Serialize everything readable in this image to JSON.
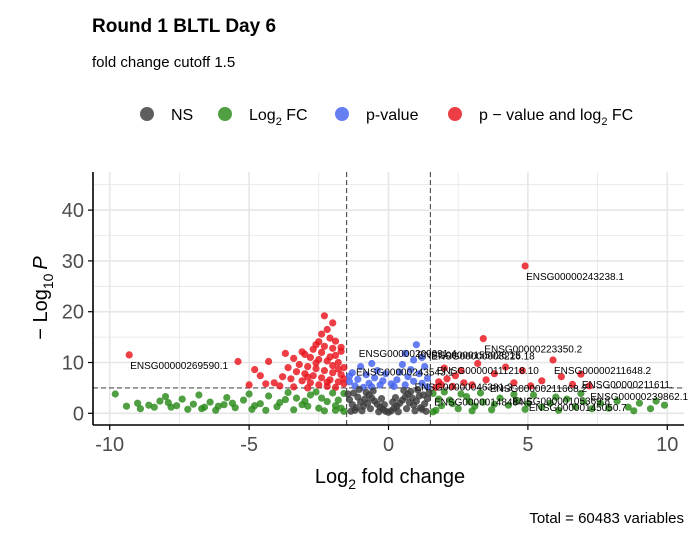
{
  "chart_data": {
    "type": "scatter",
    "title": "Round 1 BLTL Day 6",
    "subtitle": "fold change cutoff 1.5",
    "xlabel_main": "Log",
    "xlabel_sub": "2",
    "xlabel_rest": " fold change",
    "ylabel_prefix": "− Log",
    "ylabel_sub": "10",
    "ylabel_var": "P",
    "caption": "Total = 60483 variables",
    "xlim": [
      -10.6,
      10.6
    ],
    "ylim": [
      -2.3,
      47.5
    ],
    "xticks": [
      -10,
      -5,
      0,
      5,
      10
    ],
    "xtick_labels": [
      "-10",
      "-5",
      "0",
      "5",
      "10"
    ],
    "yticks": [
      0,
      10,
      20,
      30,
      40
    ],
    "ytick_labels": [
      "0",
      "10",
      "20",
      "30",
      "40"
    ],
    "fc_cutoffs": [
      -1.5,
      1.5
    ],
    "p_cutoff_y": 5,
    "grid": true,
    "legend_position": "top",
    "legend": [
      {
        "key": "ns",
        "label": "NS",
        "color": "#3a3a3a"
      },
      {
        "key": "fc",
        "label_main": "Log",
        "label_sub": "2",
        "label_rest": " FC",
        "color": "#2a8a1a"
      },
      {
        "key": "p",
        "label": "p-value",
        "color": "#4361ee"
      },
      {
        "key": "both",
        "label_main": "p − value and log",
        "label_sub": "2",
        "label_rest": " FC",
        "color": "#e8141b"
      }
    ],
    "colors": {
      "ns": "#3a3a3a",
      "fc": "#2a8a1a",
      "p": "#4361ee",
      "both": "#e8141b"
    },
    "labeled_points": [
      {
        "x": 4.9,
        "y": 29.0,
        "label": "ENSG00000243238.1"
      },
      {
        "x": -9.3,
        "y": 11.5,
        "label": "ENSG00000269590.1"
      },
      {
        "x": 3.4,
        "y": 14.7,
        "label": "ENSG00000223350.2"
      },
      {
        "x": 5.9,
        "y": 10.5,
        "label": "ENSG00000211648.2"
      },
      {
        "x": 6.9,
        "y": 7.7,
        "label": "ENSG00000211611."
      },
      {
        "x": 7.2,
        "y": 5.4,
        "label": "ENSG00000239862.1"
      },
      {
        "x": 1.0,
        "y": 13.5,
        "label": "ENSG00000155026.15"
      },
      {
        "x": -1.1,
        "y": 13.8,
        "label": "ENSG00000269091.4"
      },
      {
        "x": 1.5,
        "y": 13.3,
        "label": "ENSG00000008226.18"
      },
      {
        "x": 1.7,
        "y": 10.5,
        "label": "ENSG00000111218.10"
      },
      {
        "x": -1.2,
        "y": 10.2,
        "label": "ENSG00000243543.1"
      },
      {
        "x": 0.9,
        "y": 7.2,
        "label": "ENSG00000046381.2"
      },
      {
        "x": 3.6,
        "y": 7.0,
        "label": "ENSG00000211668.2"
      },
      {
        "x": 4.4,
        "y": 4.5,
        "label": "ENSG00000105369.8"
      },
      {
        "x": 1.6,
        "y": 4.3,
        "label": "ENSG00000148484.5"
      },
      {
        "x": 5.0,
        "y": 3.2,
        "label": "ENSG00000145050.7"
      }
    ],
    "series": [
      {
        "key": "both",
        "points": [
          [
            4.9,
            29.0
          ],
          [
            -9.3,
            11.5
          ],
          [
            3.4,
            14.7
          ],
          [
            5.9,
            10.5
          ],
          [
            6.9,
            7.7
          ],
          [
            7.2,
            5.4
          ],
          [
            -2.3,
            19.2
          ],
          [
            -2.0,
            17.8
          ],
          [
            -2.2,
            16.5
          ],
          [
            -2.4,
            15.6
          ],
          [
            -2.1,
            14.8
          ],
          [
            -1.9,
            14.2
          ],
          [
            -2.6,
            13.5
          ],
          [
            -2.0,
            12.8
          ],
          [
            -1.7,
            12.2
          ],
          [
            -3.0,
            11.6
          ],
          [
            -2.8,
            11.0
          ],
          [
            -2.5,
            10.6
          ],
          [
            -2.2,
            10.3
          ],
          [
            -1.8,
            10.0
          ],
          [
            -3.4,
            10.8
          ],
          [
            -3.2,
            9.6
          ],
          [
            -2.9,
            9.2
          ],
          [
            -2.6,
            8.8
          ],
          [
            -2.3,
            8.4
          ],
          [
            -2.0,
            8.0
          ],
          [
            -1.7,
            7.6
          ],
          [
            -3.6,
            9.0
          ],
          [
            -3.3,
            8.2
          ],
          [
            -3.0,
            7.8
          ],
          [
            -2.7,
            7.4
          ],
          [
            -2.4,
            7.0
          ],
          [
            -2.1,
            6.6
          ],
          [
            -1.8,
            6.2
          ],
          [
            -1.6,
            5.8
          ],
          [
            -3.8,
            7.2
          ],
          [
            -3.5,
            6.8
          ],
          [
            -3.1,
            6.4
          ],
          [
            -2.8,
            6.0
          ],
          [
            -2.5,
            5.6
          ],
          [
            -2.2,
            5.3
          ],
          [
            -1.9,
            5.1
          ],
          [
            -4.3,
            10.2
          ],
          [
            -4.6,
            7.4
          ],
          [
            -4.1,
            6.0
          ],
          [
            -5.0,
            5.6
          ],
          [
            -5.4,
            10.2
          ],
          [
            -4.8,
            8.6
          ],
          [
            -3.9,
            5.4
          ],
          [
            -3.4,
            5.2
          ],
          [
            -2.9,
            5.0
          ],
          [
            -2.4,
            12.0
          ],
          [
            -1.9,
            11.4
          ],
          [
            -2.7,
            12.6
          ],
          [
            -2.3,
            13.2
          ],
          [
            -1.6,
            9.0
          ],
          [
            -1.6,
            6.8
          ],
          [
            -2.0,
            9.4
          ],
          [
            -3.7,
            11.8
          ],
          [
            -2.6,
            9.9
          ],
          [
            2.4,
            7.4
          ],
          [
            2.1,
            6.8
          ],
          [
            1.8,
            6.2
          ],
          [
            2.7,
            6.0
          ],
          [
            3.0,
            5.6
          ],
          [
            2.3,
            5.3
          ],
          [
            1.7,
            5.1
          ],
          [
            3.5,
            6.6
          ],
          [
            4.2,
            9.1
          ],
          [
            3.8,
            7.8
          ],
          [
            2.6,
            8.4
          ],
          [
            4.8,
            8.4
          ],
          [
            5.5,
            6.4
          ],
          [
            6.2,
            7.2
          ],
          [
            4.5,
            6.0
          ],
          [
            3.2,
            9.8
          ],
          [
            2.0,
            8.9
          ],
          [
            1.9,
            5.6
          ],
          [
            5.1,
            5.4
          ],
          [
            6.6,
            5.7
          ],
          [
            -2.5,
            14.1
          ],
          [
            -2.1,
            11.1
          ],
          [
            -1.8,
            8.7
          ],
          [
            -3.1,
            12.1
          ],
          [
            -2.9,
            7.1
          ],
          [
            -2.2,
            6.1
          ],
          [
            -4.4,
            5.8
          ],
          [
            -1.7,
            13.0
          ]
        ]
      },
      {
        "key": "p",
        "points": [
          [
            1.0,
            13.5
          ],
          [
            0.6,
            11.8
          ],
          [
            1.2,
            11.0
          ],
          [
            0.9,
            10.5
          ],
          [
            0.5,
            9.6
          ],
          [
            1.3,
            9.2
          ],
          [
            0.8,
            8.6
          ],
          [
            0.4,
            8.1
          ],
          [
            1.1,
            7.8
          ],
          [
            0.7,
            7.2
          ],
          [
            1.4,
            6.9
          ],
          [
            0.3,
            6.6
          ],
          [
            0.9,
            6.3
          ],
          [
            1.2,
            5.9
          ],
          [
            0.6,
            5.6
          ],
          [
            0.2,
            5.3
          ],
          [
            1.4,
            5.2
          ],
          [
            -0.6,
            9.8
          ],
          [
            -1.0,
            9.2
          ],
          [
            -0.4,
            8.4
          ],
          [
            -1.3,
            8.0
          ],
          [
            -0.8,
            7.6
          ],
          [
            -0.5,
            7.0
          ],
          [
            -1.1,
            6.7
          ],
          [
            -1.4,
            6.2
          ],
          [
            -0.7,
            5.9
          ],
          [
            -0.3,
            5.6
          ],
          [
            -1.2,
            5.4
          ],
          [
            -0.9,
            5.1
          ],
          [
            -0.2,
            6.4
          ],
          [
            -1.4,
            7.3
          ],
          [
            -0.6,
            5.2
          ],
          [
            0.1,
            5.8
          ],
          [
            -0.1,
            7.8
          ]
        ]
      },
      {
        "key": "fc",
        "points": [
          [
            -9.8,
            3.8
          ],
          [
            -9.0,
            2.0
          ],
          [
            -8.6,
            1.6
          ],
          [
            -8.2,
            2.4
          ],
          [
            -7.8,
            1.2
          ],
          [
            -7.4,
            2.8
          ],
          [
            -7.0,
            1.8
          ],
          [
            -6.7,
            0.9
          ],
          [
            -6.4,
            2.2
          ],
          [
            -6.1,
            1.4
          ],
          [
            -5.8,
            3.1
          ],
          [
            -5.5,
            1.1
          ],
          [
            -5.2,
            2.6
          ],
          [
            -4.9,
            0.8
          ],
          [
            -4.6,
            1.9
          ],
          [
            -4.3,
            3.4
          ],
          [
            -4.0,
            1.3
          ],
          [
            -3.7,
            2.7
          ],
          [
            -3.4,
            0.7
          ],
          [
            -3.1,
            1.7
          ],
          [
            -2.8,
            3.6
          ],
          [
            -2.5,
            1.0
          ],
          [
            -2.2,
            2.3
          ],
          [
            -1.9,
            1.5
          ],
          [
            -1.6,
            3.9
          ],
          [
            -8.9,
            0.9
          ],
          [
            -8.0,
            3.3
          ],
          [
            -7.2,
            0.8
          ],
          [
            -6.8,
            3.6
          ],
          [
            -6.2,
            0.6
          ],
          [
            -5.6,
            2.0
          ],
          [
            -5.0,
            3.8
          ],
          [
            -4.4,
            0.6
          ],
          [
            -3.9,
            2.1
          ],
          [
            -3.3,
            3.0
          ],
          [
            -2.9,
            1.4
          ],
          [
            -2.3,
            0.5
          ],
          [
            -1.8,
            2.6
          ],
          [
            -4.8,
            1.5
          ],
          [
            -3.6,
            4.1
          ],
          [
            -2.6,
            4.2
          ],
          [
            -2.0,
            4.0
          ],
          [
            -1.7,
            1.0
          ],
          [
            -5.9,
            1.7
          ],
          [
            -6.6,
            1.2
          ],
          [
            -7.6,
            1.5
          ],
          [
            -8.4,
            1.2
          ],
          [
            -3.0,
            2.4
          ],
          [
            -2.4,
            3.0
          ],
          [
            -1.9,
            0.6
          ],
          [
            1.6,
            3.9
          ],
          [
            1.9,
            1.5
          ],
          [
            2.2,
            2.6
          ],
          [
            2.5,
            0.9
          ],
          [
            2.8,
            3.3
          ],
          [
            3.1,
            1.4
          ],
          [
            3.4,
            2.2
          ],
          [
            3.7,
            0.7
          ],
          [
            4.0,
            3.0
          ],
          [
            4.3,
            1.6
          ],
          [
            4.6,
            2.5
          ],
          [
            4.9,
            0.8
          ],
          [
            5.2,
            3.6
          ],
          [
            5.5,
            1.2
          ],
          [
            5.8,
            2.0
          ],
          [
            6.1,
            0.6
          ],
          [
            6.4,
            2.8
          ],
          [
            6.7,
            1.3
          ],
          [
            7.0,
            2.3
          ],
          [
            7.3,
            0.9
          ],
          [
            7.6,
            2.0
          ],
          [
            7.9,
            1.0
          ],
          [
            8.2,
            2.4
          ],
          [
            8.6,
            1.2
          ],
          [
            9.0,
            2.0
          ],
          [
            9.4,
            0.9
          ],
          [
            9.9,
            1.6
          ],
          [
            2.0,
            4.2
          ],
          [
            2.6,
            3.8
          ],
          [
            3.3,
            4.0
          ],
          [
            4.5,
            3.7
          ],
          [
            1.7,
            0.6
          ],
          [
            2.3,
            1.9
          ],
          [
            3.0,
            0.5
          ],
          [
            3.8,
            1.8
          ],
          [
            5.0,
            1.9
          ],
          [
            6.0,
            3.2
          ],
          [
            6.9,
            3.9
          ],
          [
            1.8,
            2.8
          ],
          [
            2.9,
            2.3
          ],
          [
            -1.6,
            0.4
          ],
          [
            1.6,
            0.3
          ],
          [
            -9.4,
            1.4
          ],
          [
            -7.9,
            2.1
          ],
          [
            9.6,
            2.4
          ],
          [
            8.8,
            0.5
          ]
        ]
      },
      {
        "key": "ns",
        "points": [
          [
            0.0,
            0.2
          ],
          [
            0.1,
            0.5
          ],
          [
            -0.1,
            0.4
          ],
          [
            0.2,
            1.0
          ],
          [
            -0.2,
            0.8
          ],
          [
            0.3,
            1.4
          ],
          [
            -0.3,
            1.2
          ],
          [
            0.4,
            2.0
          ],
          [
            -0.4,
            1.8
          ],
          [
            0.5,
            2.6
          ],
          [
            -0.5,
            2.4
          ],
          [
            0.6,
            3.2
          ],
          [
            -0.6,
            3.0
          ],
          [
            0.7,
            3.8
          ],
          [
            -0.7,
            3.6
          ],
          [
            0.8,
            4.3
          ],
          [
            -0.8,
            4.1
          ],
          [
            0.9,
            1.6
          ],
          [
            -0.9,
            1.4
          ],
          [
            1.0,
            2.4
          ],
          [
            -1.0,
            2.2
          ],
          [
            1.1,
            3.4
          ],
          [
            -1.1,
            3.2
          ],
          [
            1.2,
            0.8
          ],
          [
            -1.2,
            0.6
          ],
          [
            1.3,
            1.9
          ],
          [
            -1.3,
            1.7
          ],
          [
            1.4,
            2.9
          ],
          [
            -1.4,
            2.7
          ],
          [
            1.45,
            4.0
          ],
          [
            -1.45,
            3.8
          ],
          [
            0.35,
            0.3
          ],
          [
            -0.35,
            0.3
          ],
          [
            0.65,
            0.9
          ],
          [
            -0.65,
            0.9
          ],
          [
            0.95,
            0.5
          ],
          [
            -0.95,
            0.5
          ],
          [
            1.25,
            3.6
          ],
          [
            -1.25,
            4.0
          ],
          [
            0.15,
            2.2
          ],
          [
            -0.15,
            1.7
          ],
          [
            0.55,
            4.5
          ],
          [
            -0.55,
            4.4
          ],
          [
            1.05,
            4.6
          ],
          [
            -1.05,
            4.7
          ],
          [
            0.75,
            2.1
          ],
          [
            -0.75,
            2.0
          ],
          [
            1.35,
            0.4
          ],
          [
            -1.35,
            0.4
          ],
          [
            0.25,
            3.1
          ],
          [
            -0.25,
            2.9
          ],
          [
            0.85,
            3.0
          ],
          [
            -0.85,
            2.8
          ],
          [
            1.15,
            1.1
          ],
          [
            -1.15,
            1.1
          ]
        ]
      }
    ]
  }
}
